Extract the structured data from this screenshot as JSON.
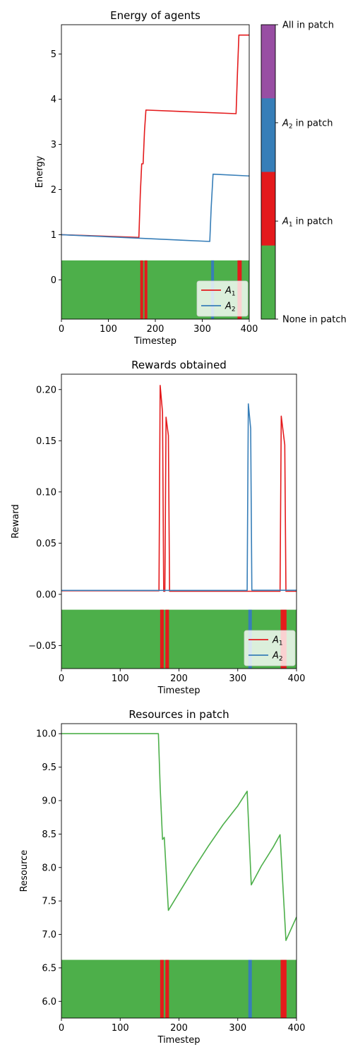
{
  "colors": {
    "A1": "#e41a1c",
    "A2": "#377eb8",
    "none": "#4daf4a",
    "all": "#984ea3",
    "resource": "#4daf4a"
  },
  "colorbar": {
    "labels": [
      {
        "key": "none",
        "main": "None in patch",
        "sub": ""
      },
      {
        "key": "A1",
        "main": "A",
        "sub": "1",
        "suffix": " in patch"
      },
      {
        "key": "A2",
        "main": "A",
        "sub": "2",
        "suffix": " in patch"
      },
      {
        "key": "all",
        "main": "All in patch",
        "sub": ""
      }
    ]
  },
  "chart_data": [
    {
      "type": "line",
      "title": "Energy of agents",
      "xlabel": "Timestep",
      "ylabel": "Energy",
      "xlim": [
        0,
        400
      ],
      "ylim": [
        -0.87,
        5.65
      ],
      "xticks": [
        0,
        100,
        200,
        300,
        400
      ],
      "yticks": [
        0,
        1,
        2,
        3,
        4,
        5
      ],
      "legend": "lower-right",
      "band": {
        "y0": -0.87,
        "y1": 0.43
      },
      "band_events": [
        {
          "x0": 168,
          "x1": 174,
          "who": "A1"
        },
        {
          "x0": 177,
          "x1": 183,
          "who": "A1"
        },
        {
          "x0": 319,
          "x1": 325,
          "who": "A2"
        },
        {
          "x0": 375,
          "x1": 384,
          "who": "A1"
        }
      ],
      "series": [
        {
          "name": "A",
          "sub": "1",
          "color_key": "A1",
          "points": [
            [
              0,
              1.0
            ],
            [
              165,
              0.94
            ],
            [
              168,
              1.9
            ],
            [
              171,
              2.57
            ],
            [
              174,
              2.57
            ],
            [
              177,
              3.3
            ],
            [
              180,
              3.76
            ],
            [
              372,
              3.68
            ],
            [
              375,
              4.6
            ],
            [
              378,
              5.42
            ],
            [
              400,
              5.42
            ]
          ]
        },
        {
          "name": "A",
          "sub": "2",
          "color_key": "A2",
          "points": [
            [
              0,
              1.0
            ],
            [
              316,
              0.85
            ],
            [
              319,
              1.6
            ],
            [
              323,
              2.34
            ],
            [
              400,
              2.3
            ]
          ]
        }
      ]
    },
    {
      "type": "line",
      "title": "Rewards obtained",
      "xlabel": "Timestep",
      "ylabel": "Reward",
      "xlim": [
        0,
        400
      ],
      "ylim": [
        -0.0725,
        0.215
      ],
      "xticks": [
        0,
        100,
        200,
        300,
        400
      ],
      "yticks": [
        -0.05,
        0.0,
        0.05,
        0.1,
        0.15,
        0.2
      ],
      "ytick_labels": [
        "−0.05",
        "0.00",
        "0.05",
        "0.10",
        "0.15",
        "0.20"
      ],
      "legend": "lower-right",
      "band": {
        "y0": -0.0725,
        "y1": -0.015
      },
      "band_events": [
        {
          "x0": 168,
          "x1": 174,
          "who": "A1"
        },
        {
          "x0": 177,
          "x1": 183,
          "who": "A1"
        },
        {
          "x0": 318,
          "x1": 324,
          "who": "A2"
        },
        {
          "x0": 373,
          "x1": 383,
          "who": "A1"
        }
      ],
      "series": [
        {
          "name": "A",
          "sub": "1",
          "color_key": "A1",
          "points": [
            [
              0,
              0.0035
            ],
            [
              166,
              0.0035
            ],
            [
              168,
              0.204
            ],
            [
              172,
              0.178
            ],
            [
              174,
              0.003
            ],
            [
              176,
              0.003
            ],
            [
              178,
              0.173
            ],
            [
              182,
              0.155
            ],
            [
              184,
              0.003
            ],
            [
              372,
              0.003
            ],
            [
              374,
              0.174
            ],
            [
              380,
              0.146
            ],
            [
              382,
              0.003
            ],
            [
              400,
              0.003
            ]
          ]
        },
        {
          "name": "A",
          "sub": "2",
          "color_key": "A2",
          "points": [
            [
              0,
              0.0038
            ],
            [
              316,
              0.0038
            ],
            [
              318,
              0.186
            ],
            [
              322,
              0.162
            ],
            [
              324,
              0.004
            ],
            [
              400,
              0.004
            ]
          ]
        }
      ]
    },
    {
      "type": "line",
      "title": "Resources in patch",
      "xlabel": "Timestep",
      "ylabel": "Resource",
      "xlim": [
        0,
        400
      ],
      "ylim": [
        5.75,
        10.15
      ],
      "xticks": [
        0,
        100,
        200,
        300,
        400
      ],
      "yticks": [
        6.0,
        6.5,
        7.0,
        7.5,
        8.0,
        8.5,
        9.0,
        9.5,
        10.0
      ],
      "ytick_labels": [
        "6.0",
        "6.5",
        "7.0",
        "7.5",
        "8.0",
        "8.5",
        "9.0",
        "9.5",
        "10.0"
      ],
      "band": {
        "y0": 5.75,
        "y1": 6.62
      },
      "band_events": [
        {
          "x0": 168,
          "x1": 174,
          "who": "A1"
        },
        {
          "x0": 177,
          "x1": 183,
          "who": "A1"
        },
        {
          "x0": 318,
          "x1": 324,
          "who": "A2"
        },
        {
          "x0": 373,
          "x1": 383,
          "who": "A1"
        }
      ],
      "series": [
        {
          "name": "",
          "color_key": "resource",
          "points": [
            [
              0,
              10.0
            ],
            [
              165,
              10.0
            ],
            [
              168,
              9.2
            ],
            [
              172,
              8.42
            ],
            [
              175,
              8.45
            ],
            [
              182,
              7.36
            ],
            [
              200,
              7.62
            ],
            [
              225,
              7.98
            ],
            [
              250,
              8.32
            ],
            [
              275,
              8.64
            ],
            [
              300,
              8.92
            ],
            [
              316,
              9.14
            ],
            [
              323,
              7.74
            ],
            [
              340,
              8.02
            ],
            [
              360,
              8.3
            ],
            [
              372,
              8.49
            ],
            [
              382,
              6.91
            ],
            [
              400,
              7.26
            ]
          ]
        }
      ]
    }
  ]
}
